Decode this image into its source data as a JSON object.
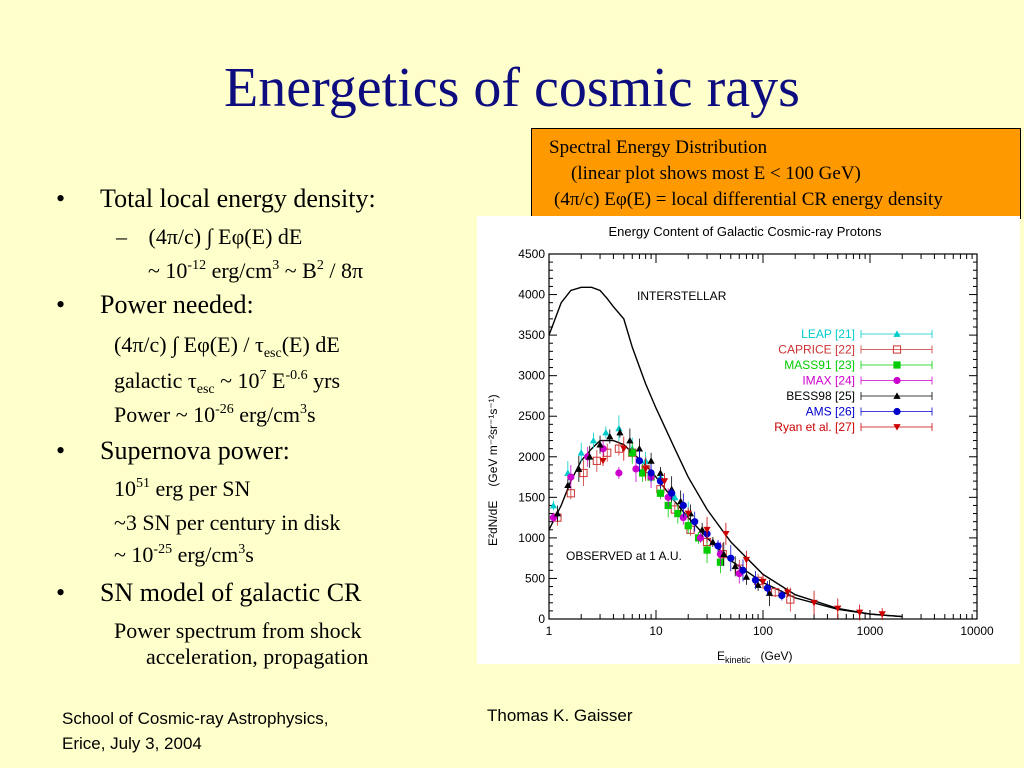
{
  "slide": {
    "title": "Energetics of cosmic rays"
  },
  "callout": {
    "line1": "Spectral Energy Distribution",
    "line2": "(linear plot shows most E < 100 GeV)",
    "line3_pre": "(4",
    "line3_pi": "π",
    "line3_mid": "/c) E",
    "line3_phi": "φ",
    "line3_post": "(E) = local differential CR energy density"
  },
  "bullets": {
    "b1": {
      "marker": "•",
      "text": "Total local energy density:"
    },
    "b1_s1": {
      "dash": "–",
      "text": "(4π/c) ∫ Eφ(E) dE"
    },
    "b1_s2": {
      "pre": "~ 10",
      "exp1": "-12",
      "mid": " erg/cm",
      "exp2": "3",
      "post": " ~ B",
      "exp3": "2",
      "tail": " / 8π"
    },
    "b2": {
      "marker": "•",
      "text": "Power needed:"
    },
    "b2_s1": {
      "pre": "(4π/c) ∫ Eφ(E) / τ",
      "sub": "esc",
      "post": "(E) dE"
    },
    "b2_s2": {
      "pre": "galactic τ",
      "sub": "esc",
      "mid": " ~ 10",
      "exp1": "7",
      "mid2": " E",
      "exp2": "-0.6",
      "post": " yrs"
    },
    "b2_s3": {
      "pre": "Power ~ 10",
      "exp1": "-26",
      "mid": " erg/cm",
      "exp2": "3",
      "post": "s"
    },
    "b3": {
      "marker": "•",
      "text": "Supernova power:"
    },
    "b3_s1": {
      "pre": "10",
      "exp1": "51",
      "post": " erg per SN"
    },
    "b3_s2": {
      "text": "~3 SN per century in disk"
    },
    "b3_s3": {
      "pre": "~ 10",
      "exp1": "-25",
      "mid": " erg/cm",
      "exp2": "3",
      "post": "s"
    },
    "b4": {
      "marker": "•",
      "text": "SN model of galactic CR"
    },
    "b4_s1": {
      "text": "Power spectrum from shock"
    },
    "b4_s2": {
      "text": "acceleration, propagation"
    }
  },
  "footer": {
    "left_line1": "School of Cosmic-ray Astrophysics,",
    "left_line2": "Erice, July 3, 2004",
    "center": "Thomas K. Gaisser"
  },
  "chart_data": {
    "type": "scatter",
    "title": "Energy Content of Galactic Cosmic-ray Protons",
    "xlabel": "E",
    "xlabel_sub": "kinetic",
    "xlabel_unit": "(GeV)",
    "ylabel": "E²dN/dE",
    "ylabel_unit": "(GeV m⁻²sr⁻¹s⁻¹)",
    "x_scale": "log",
    "xlim": [
      1,
      10000
    ],
    "ylim": [
      0,
      4500
    ],
    "x_ticks": [
      "1",
      "10",
      "100",
      "1000",
      "10000"
    ],
    "y_ticks": [
      "0",
      "500",
      "1000",
      "1500",
      "2000",
      "2500",
      "3000",
      "3500",
      "4000",
      "4500"
    ],
    "annotations": [
      "INTERSTELLAR",
      "OBSERVED at 1 A.U."
    ],
    "curves": [
      {
        "name": "interstellar",
        "x": [
          1,
          1.3,
          1.6,
          2,
          2.5,
          3,
          3.5,
          4,
          5,
          6,
          8,
          10,
          15,
          20,
          30,
          50,
          100,
          200,
          500,
          1000,
          2000
        ],
        "y": [
          3500,
          3900,
          4050,
          4090,
          4090,
          4050,
          3950,
          3850,
          3700,
          3350,
          2900,
          2600,
          2100,
          1750,
          1350,
          950,
          550,
          300,
          130,
          60,
          30
        ]
      },
      {
        "name": "observed",
        "x": [
          1,
          1.3,
          1.6,
          2,
          2.5,
          3,
          4,
          5,
          6,
          8,
          10,
          15,
          20,
          30,
          50,
          100,
          200,
          500,
          1000,
          2000
        ],
        "y": [
          1100,
          1400,
          1700,
          1950,
          2100,
          2200,
          2200,
          2150,
          2050,
          1900,
          1750,
          1450,
          1250,
          1000,
          720,
          450,
          260,
          120,
          60,
          30
        ]
      }
    ],
    "series": [
      {
        "name": "LEAP [21]",
        "color": "#00cccc",
        "marker": "triangle",
        "x": [
          1.1,
          1.5,
          2,
          2.6,
          3.4,
          4.5,
          6,
          8,
          11,
          15,
          20
        ],
        "y": [
          1400,
          1800,
          2050,
          2200,
          2300,
          2350,
          2100,
          1950,
          1750,
          1500,
          1300
        ]
      },
      {
        "name": "CAPRICE [22]",
        "color": "#cc3333",
        "marker": "open-square",
        "x": [
          1.2,
          1.6,
          2.1,
          2.8,
          3.5,
          4.5,
          6,
          8,
          11,
          15,
          21,
          30,
          42,
          60,
          90,
          130,
          180
        ],
        "y": [
          1250,
          1550,
          1800,
          1950,
          2050,
          2100,
          2050,
          1850,
          1600,
          1350,
          1100,
          950,
          800,
          620,
          470,
          330,
          240
        ]
      },
      {
        "name": "MASS91 [23]",
        "color": "#00cc00",
        "marker": "square",
        "x": [
          6,
          7.5,
          9,
          11,
          13,
          16,
          20,
          25,
          30,
          40
        ],
        "y": [
          2050,
          1800,
          1750,
          1550,
          1400,
          1300,
          1150,
          1000,
          850,
          700
        ]
      },
      {
        "name": "IMAX [24]",
        "color": "#cc00cc",
        "marker": "circle",
        "x": [
          1.1,
          1.6,
          2.3,
          3.2,
          4.5,
          6.5,
          9,
          13,
          18,
          26,
          40,
          60
        ],
        "y": [
          1250,
          1750,
          2000,
          2100,
          1800,
          1850,
          1750,
          1500,
          1250,
          1000,
          800,
          560
        ]
      },
      {
        "name": "BESS98 [25]",
        "color": "#000000",
        "marker": "triangle",
        "x": [
          1.2,
          1.5,
          1.9,
          2.4,
          3,
          3.7,
          4.6,
          5.7,
          7,
          9,
          11,
          14,
          17,
          21,
          27,
          34,
          43,
          55,
          70,
          90,
          115
        ],
        "y": [
          1300,
          1650,
          1850,
          2000,
          2150,
          2250,
          2300,
          2200,
          2100,
          1950,
          1800,
          1600,
          1450,
          1300,
          1100,
          950,
          800,
          650,
          520,
          420,
          320
        ]
      },
      {
        "name": "AMS [26]",
        "color": "#0000cc",
        "marker": "circle",
        "x": [
          7,
          9,
          11,
          14,
          18,
          23,
          30,
          38,
          50,
          65,
          85,
          110,
          150
        ],
        "y": [
          1950,
          1800,
          1700,
          1550,
          1400,
          1200,
          1050,
          900,
          750,
          600,
          480,
          380,
          290
        ]
      },
      {
        "name": "Ryan et al. [27]",
        "color": "#cc0000",
        "marker": "down-triangle",
        "x": [
          3.2,
          5,
          8,
          12,
          20,
          30,
          45,
          70,
          100,
          170,
          300,
          500,
          800,
          1300
        ],
        "y": [
          1950,
          2100,
          1850,
          1700,
          1300,
          1100,
          1050,
          730,
          460,
          330,
          200,
          130,
          80,
          60
        ]
      }
    ],
    "legend_position": "right"
  }
}
